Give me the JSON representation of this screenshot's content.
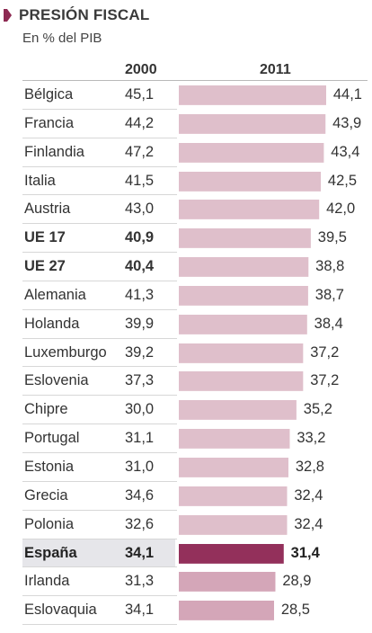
{
  "title": "PRESIÓN FISCAL",
  "subtitle": "En % del PIB",
  "colors": {
    "marker": "#8d2a52",
    "bar": "#dfbfcb",
    "bar_highlight": "#93305b",
    "bar_low": "#d4a6b8"
  },
  "chart_data": {
    "type": "bar",
    "title": "PRESIÓN FISCAL",
    "subtitle": "En % del PIB",
    "columns": [
      "2000",
      "2011"
    ],
    "categories": [
      "Bélgica",
      "Francia",
      "Finlandia",
      "Italia",
      "Austria",
      "UE 17",
      "UE 27",
      "Alemania",
      "Holanda",
      "Luxemburgo",
      "Eslovenia",
      "Chipre",
      "Portugal",
      "Estonia",
      "Grecia",
      "Polonia",
      "España",
      "Irlanda",
      "Eslovaquia"
    ],
    "values_2000": [
      "45,1",
      "44,2",
      "47,2",
      "41,5",
      "43,0",
      "40,9",
      "40,4",
      "41,3",
      "39,9",
      "39,2",
      "37,3",
      "30,0",
      "31,1",
      "31,0",
      "34,6",
      "32,6",
      "34,1",
      "31,3",
      "34,1"
    ],
    "values_2011_labels": [
      "44,1",
      "43,9",
      "43,4",
      "42,5",
      "42,0",
      "39,5",
      "38,8",
      "38,7",
      "38,4",
      "37,2",
      "37,2",
      "35,2",
      "33,2",
      "32,8",
      "32,4",
      "32,4",
      "31,4",
      "28,9",
      "28,5"
    ],
    "series": [
      {
        "name": "2011",
        "values": [
          44.1,
          43.9,
          43.4,
          42.5,
          42.0,
          39.5,
          38.8,
          38.7,
          38.4,
          37.2,
          37.2,
          35.2,
          33.2,
          32.8,
          32.4,
          32.4,
          31.4,
          28.9,
          28.5
        ]
      }
    ],
    "bold_categories": [
      "UE 17",
      "UE 27"
    ],
    "highlight_category": "España",
    "ylim": [
      0,
      44.1
    ],
    "grid": false,
    "legend": "none"
  }
}
